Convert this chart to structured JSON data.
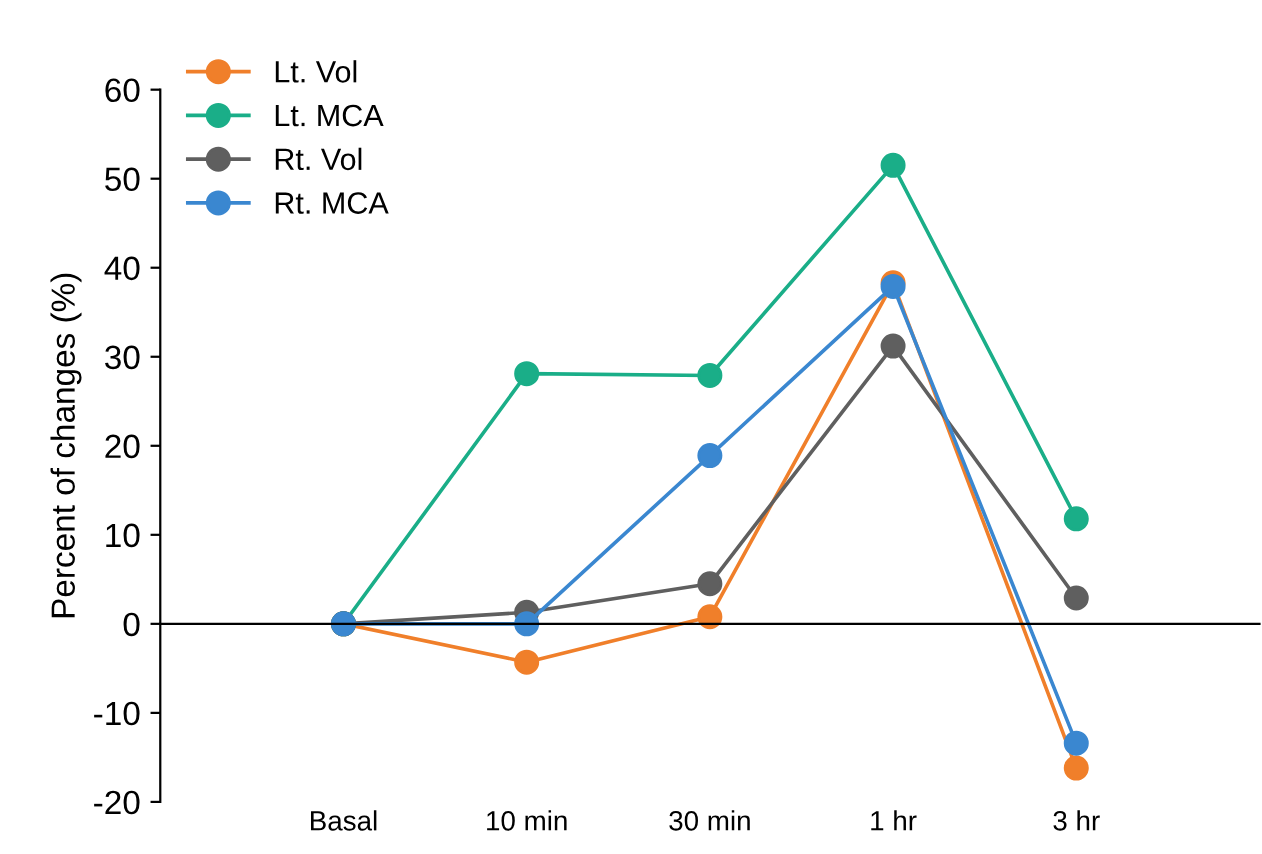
{
  "chart_data": {
    "type": "line",
    "ylabel": "Percent of changes (%)",
    "categories": [
      "Basal",
      "10 min",
      "30 min",
      "1 hr",
      "3 hr"
    ],
    "series": [
      {
        "name": "Lt. Vol",
        "color": "#f07f2a",
        "values": [
          0,
          -4.3,
          0.8,
          38.3,
          -16.2
        ]
      },
      {
        "name": "Lt. MCA",
        "color": "#1aae88",
        "values": [
          0,
          28.1,
          27.9,
          51.5,
          11.8
        ]
      },
      {
        "name": "Rt. Vol",
        "color": "#5f5f5f",
        "values": [
          0,
          1.3,
          4.5,
          31.2,
          2.9
        ]
      },
      {
        "name": "Rt. MCA",
        "color": "#3a87d0",
        "values": [
          0,
          0,
          18.9,
          37.9,
          -13.4
        ]
      }
    ],
    "ylim": [
      -20,
      60
    ],
    "yticks": [
      -20,
      -10,
      0,
      10,
      20,
      30,
      40,
      50,
      60
    ],
    "marker": "circle",
    "line_style": "solid",
    "legend": "top left"
  }
}
